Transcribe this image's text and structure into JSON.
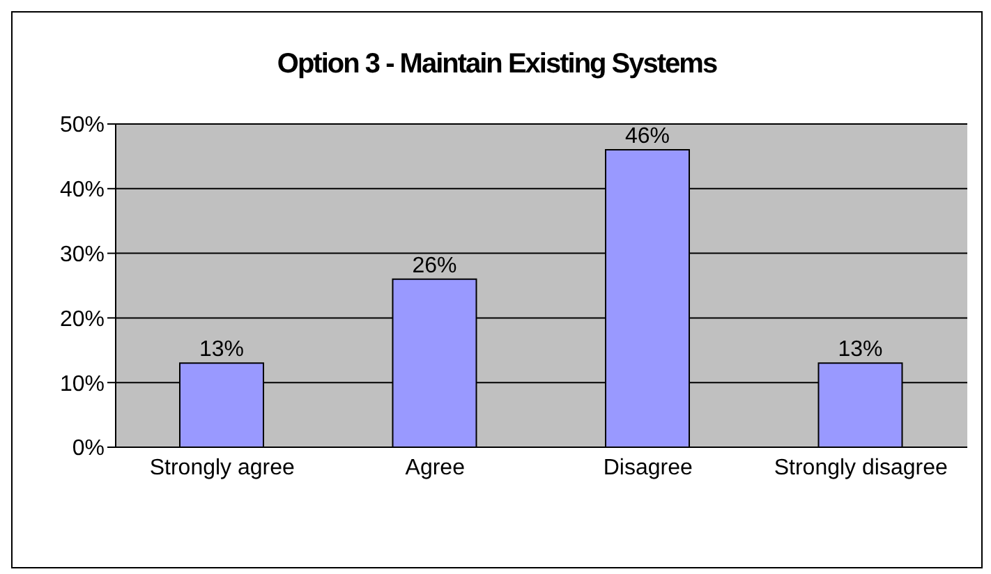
{
  "chart_data": {
    "type": "bar",
    "title": "Option 3 - Maintain Existing Systems",
    "categories": [
      "Strongly agree",
      "Agree",
      "Disagree",
      "Strongly disagree"
    ],
    "values": [
      13,
      26,
      46,
      13
    ],
    "value_labels": [
      "13%",
      "26%",
      "46%",
      "13%"
    ],
    "color": "#9999ff",
    "ylim": [
      0,
      50
    ],
    "yticks": [
      {
        "value": 0,
        "label": "0%"
      },
      {
        "value": 10,
        "label": "10%"
      },
      {
        "value": 20,
        "label": "20%"
      },
      {
        "value": 30,
        "label": "30%"
      },
      {
        "value": 40,
        "label": "40%"
      },
      {
        "value": 50,
        "label": "50%"
      }
    ],
    "grid": "y",
    "legend": false
  }
}
